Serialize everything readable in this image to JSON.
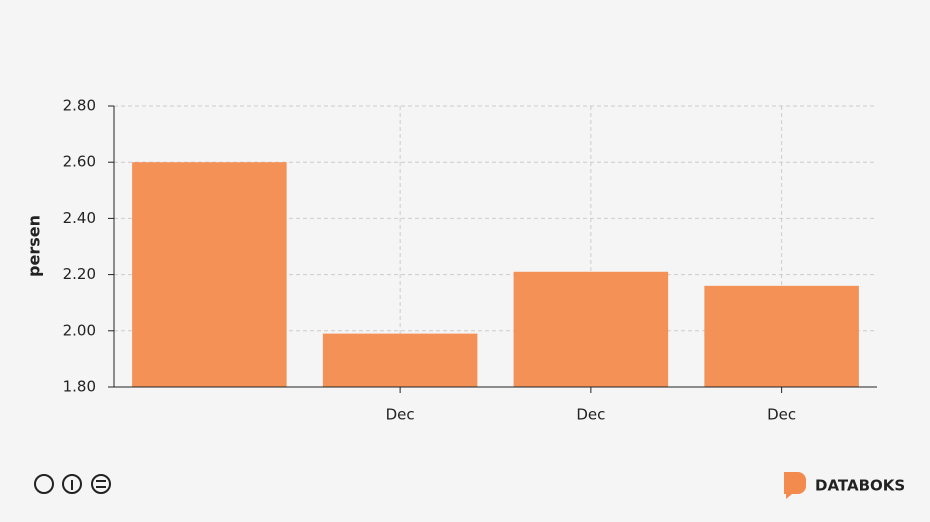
{
  "chart_data": {
    "type": "bar",
    "y_label": "persen",
    "categories": [
      null,
      "Dec",
      "Dec",
      "Dec"
    ],
    "values": [
      2.6,
      1.99,
      2.21,
      2.16
    ],
    "color": "#f38b4e",
    "ylim": [
      1.8,
      2.8
    ],
    "yticks": [
      {
        "value": 1.8,
        "label": "1.80"
      },
      {
        "value": 2.0,
        "label": "2.00"
      },
      {
        "value": 2.2,
        "label": "2.20"
      },
      {
        "value": 2.4,
        "label": "2.40"
      },
      {
        "value": 2.6,
        "label": "2.60"
      },
      {
        "value": 2.8,
        "label": "2.80"
      }
    ],
    "grid": true
  },
  "footer": {
    "brand": "DATABOKS"
  }
}
